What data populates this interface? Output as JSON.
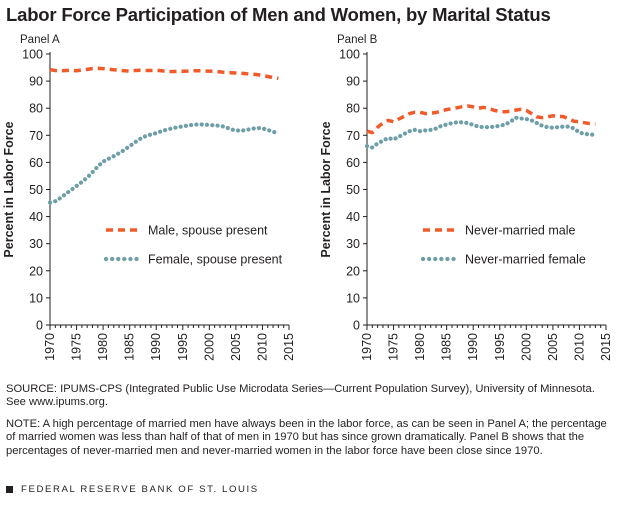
{
  "title": "Labor Force Participation of Men and Women, by Marital Status",
  "colors": {
    "male": "#f15a29",
    "female": "#6e9fa8",
    "axis": "#231f20",
    "text": "#231f20"
  },
  "chart_data": [
    {
      "type": "line",
      "panel_label": "Panel A",
      "ylabel": "Percent in Labor Force",
      "xlabel": "",
      "xlim": [
        1970,
        2015
      ],
      "ylim": [
        0,
        100
      ],
      "xticks": [
        1970,
        1975,
        1980,
        1985,
        1990,
        1995,
        2000,
        2005,
        2010,
        2015
      ],
      "yticks": [
        0,
        10,
        20,
        30,
        40,
        50,
        60,
        70,
        80,
        90,
        100
      ],
      "x": [
        1970,
        1971,
        1972,
        1973,
        1974,
        1975,
        1976,
        1977,
        1978,
        1979,
        1980,
        1981,
        1982,
        1983,
        1984,
        1985,
        1986,
        1987,
        1988,
        1989,
        1990,
        1991,
        1992,
        1993,
        1994,
        1995,
        1996,
        1997,
        1998,
        1999,
        2000,
        2001,
        2002,
        2003,
        2004,
        2005,
        2006,
        2007,
        2008,
        2009,
        2010,
        2011,
        2012,
        2013
      ],
      "series": [
        {
          "name": "Male, spouse present",
          "style": "dashed",
          "color": "#f15a29",
          "values": [
            94.2,
            93.9,
            93.8,
            93.9,
            94.0,
            93.8,
            94.1,
            94.3,
            94.6,
            94.7,
            94.6,
            94.4,
            94.2,
            94.0,
            93.8,
            93.7,
            93.9,
            94.0,
            93.9,
            93.9,
            94.0,
            93.8,
            93.6,
            93.5,
            93.6,
            93.6,
            93.7,
            93.8,
            93.8,
            93.7,
            93.7,
            93.6,
            93.4,
            93.2,
            93.1,
            93.0,
            92.9,
            92.7,
            92.6,
            92.4,
            92.1,
            91.7,
            91.3,
            91.0
          ]
        },
        {
          "name": "Female, spouse present",
          "style": "dotted",
          "color": "#6e9fa8",
          "values": [
            45.2,
            45.7,
            46.9,
            48.4,
            49.8,
            51.3,
            52.8,
            54.4,
            56.4,
            58.5,
            60.3,
            61.3,
            62.3,
            63.4,
            64.6,
            66.0,
            67.4,
            68.7,
            69.7,
            70.3,
            70.8,
            71.5,
            72.1,
            72.6,
            73.0,
            73.3,
            73.6,
            73.9,
            74.0,
            74.0,
            73.8,
            73.7,
            73.5,
            73.1,
            72.2,
            71.8,
            71.7,
            72.0,
            72.4,
            72.7,
            72.6,
            72.0,
            71.3,
            70.8
          ]
        }
      ]
    },
    {
      "type": "line",
      "panel_label": "Panel B",
      "ylabel": "Percent in Labor Force",
      "xlabel": "",
      "xlim": [
        1970,
        2015
      ],
      "ylim": [
        0,
        100
      ],
      "xticks": [
        1970,
        1975,
        1980,
        1985,
        1990,
        1995,
        2000,
        2005,
        2010,
        2015
      ],
      "yticks": [
        0,
        10,
        20,
        30,
        40,
        50,
        60,
        70,
        80,
        90,
        100
      ],
      "x": [
        1970,
        1971,
        1972,
        1973,
        1974,
        1975,
        1976,
        1977,
        1978,
        1979,
        1980,
        1981,
        1982,
        1983,
        1984,
        1985,
        1986,
        1987,
        1988,
        1989,
        1990,
        1991,
        1992,
        1993,
        1994,
        1995,
        1996,
        1997,
        1998,
        1999,
        2000,
        2001,
        2002,
        2003,
        2004,
        2005,
        2006,
        2007,
        2008,
        2009,
        2010,
        2011,
        2012,
        2013
      ],
      "series": [
        {
          "name": "Never-married male",
          "style": "dashed",
          "color": "#f15a29",
          "values": [
            71.5,
            71.0,
            73.0,
            74.5,
            75.5,
            75.0,
            76.0,
            77.0,
            78.0,
            78.5,
            78.5,
            78.0,
            78.2,
            78.4,
            79.0,
            79.5,
            79.8,
            80.2,
            80.6,
            80.8,
            80.5,
            80.0,
            80.3,
            79.8,
            79.2,
            78.8,
            78.7,
            78.9,
            79.3,
            79.6,
            79.2,
            78.0,
            76.8,
            76.5,
            76.8,
            77.2,
            77.0,
            76.9,
            76.0,
            75.2,
            75.0,
            74.6,
            74.3,
            74.2
          ]
        },
        {
          "name": "Never-married female",
          "style": "dotted",
          "color": "#6e9fa8",
          "values": [
            66.0,
            65.5,
            67.0,
            68.0,
            69.0,
            68.5,
            69.5,
            70.5,
            71.5,
            72.0,
            71.5,
            71.8,
            72.0,
            72.5,
            73.5,
            74.0,
            74.5,
            74.8,
            74.8,
            74.5,
            73.8,
            73.2,
            73.0,
            73.0,
            73.2,
            73.5,
            74.0,
            75.0,
            76.5,
            76.2,
            76.0,
            75.5,
            74.5,
            73.5,
            73.0,
            72.8,
            73.0,
            73.2,
            73.2,
            72.5,
            71.0,
            70.5,
            70.3,
            70.2
          ]
        }
      ]
    }
  ],
  "notes": {
    "source": "SOURCE: IPUMS-CPS (Integrated Public Use Microdata Series—Current Population Survey), University of Minnesota. See www.ipums.org.",
    "note": "NOTE: A high percentage of married men have always been in the labor force, as can be seen in Panel A; the percentage of married women was less than half of that of men in 1970 but has since grown dramatically. Panel B shows that the percentages of never-married men and never-married women in the labor force have been close since 1970."
  },
  "footer": "FEDERAL RESERVE BANK OF ST. LOUIS"
}
